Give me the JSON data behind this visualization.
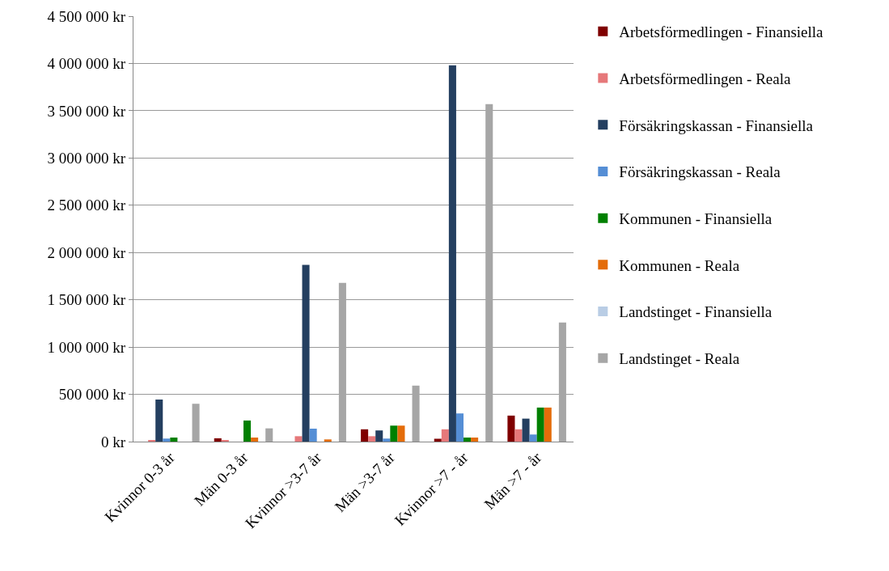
{
  "chart_data": {
    "type": "bar",
    "categories": [
      "Kvinnor 0-3 år",
      "Män 0-3 år",
      "Kvinnor >3-7 år",
      "Män >3-7 år",
      "Kvinnor >7 - år",
      "Män >7 - år"
    ],
    "series": [
      {
        "name": "Arbetsförmedlingen - Finansiella",
        "color": "#7f0000",
        "values": [
          0,
          35000,
          0,
          130000,
          30000,
          275000
        ]
      },
      {
        "name": "Arbetsförmedlingen - Reala",
        "color": "#e6787a",
        "values": [
          15000,
          10000,
          57000,
          57000,
          130000,
          130000
        ]
      },
      {
        "name": "Försäkringskassan - Finansiella",
        "color": "#243f60",
        "values": [
          445000,
          0,
          1870000,
          118000,
          3980000,
          243000
        ]
      },
      {
        "name": "Försäkringskassan - Reala",
        "color": "#558ed5",
        "values": [
          32000,
          0,
          137000,
          32000,
          298000,
          75000
        ]
      },
      {
        "name": "Kommunen - Finansiella",
        "color": "#008000",
        "values": [
          43000,
          223000,
          0,
          169000,
          43000,
          360000
        ]
      },
      {
        "name": "Kommunen - Reala",
        "color": "#e46c0a",
        "values": [
          0,
          43000,
          23000,
          169000,
          43000,
          360000
        ]
      },
      {
        "name": "Landstinget - Finansiella",
        "color": "#b9cde5",
        "values": [
          0,
          0,
          0,
          0,
          0,
          0
        ]
      },
      {
        "name": "Landstinget - Reala",
        "color": "#a6a6a6",
        "values": [
          400000,
          140000,
          1680000,
          592000,
          3570000,
          1260000
        ]
      }
    ],
    "ylim": [
      0,
      4500000
    ],
    "yticks": [
      {
        "value": 0,
        "label": "0 kr"
      },
      {
        "value": 500000,
        "label": "500 000 kr"
      },
      {
        "value": 1000000,
        "label": "1 000 000 kr"
      },
      {
        "value": 1500000,
        "label": "1 500 000 kr"
      },
      {
        "value": 2000000,
        "label": "2 000 000 kr"
      },
      {
        "value": 2500000,
        "label": "2 500 000 kr"
      },
      {
        "value": 3000000,
        "label": "3 000 000 kr"
      },
      {
        "value": 3500000,
        "label": "3 500 000 kr"
      },
      {
        "value": 4000000,
        "label": "4 000 000 kr"
      },
      {
        "value": 4500000,
        "label": "4 500 000 kr"
      }
    ],
    "grid": "y",
    "legend": "right"
  }
}
